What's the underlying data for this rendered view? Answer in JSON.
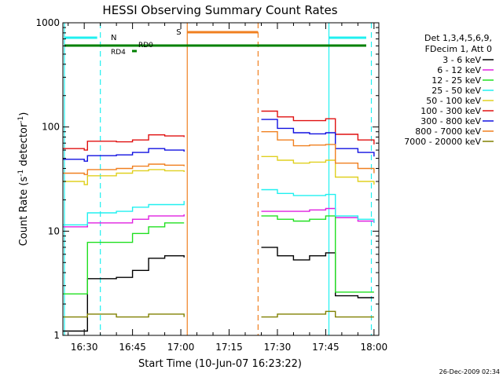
{
  "chart_data": {
    "type": "line",
    "title": "HESSI Observing Summary Count Rates",
    "xlabel": "Start Time (10-Jun-07 16:23:22)",
    "ylabel_main": "Count Rate (s",
    "ylabel_sup1": "-1",
    "ylabel_mid": " detector",
    "ylabel_sup2": "-1",
    "ylabel_end": ")",
    "yscale": "log",
    "ylim": [
      1,
      1000
    ],
    "xlim_minutes": [
      16.37,
      18.08
    ],
    "x_ticks": [
      "16:30",
      "16:45",
      "17:00",
      "17:15",
      "17:30",
      "17:45",
      "18:00"
    ],
    "y_ticks": [
      "1",
      "10",
      "100",
      "1000"
    ],
    "legend_header": [
      "Det 1,3,4,5,6,9,",
      "FDecim 1, Att 0"
    ],
    "timestamp": "26-Dec-2009 02:34",
    "flags": {
      "night": "N",
      "saa": "S",
      "rd0": "RD0",
      "rd4": "RD4"
    },
    "gaps": [
      [
        "17:02",
        "17:24"
      ]
    ],
    "series": [
      {
        "name": "3 - 6 keV",
        "color": "#000000",
        "x": [
          "16:23",
          "16:30",
          "16:31",
          "16:40",
          "16:45",
          "16:50",
          "16:55",
          "17:01",
          "17:25",
          "17:30",
          "17:35",
          "17:40",
          "17:45",
          "17:48",
          "17:55",
          "18:00"
        ],
        "y": [
          1.1,
          1.1,
          3.5,
          3.6,
          4.2,
          5.5,
          5.8,
          5.6,
          7.0,
          5.8,
          5.3,
          5.8,
          6.2,
          2.4,
          2.3,
          2.3
        ]
      },
      {
        "name": "6 - 12 keV",
        "color": "#e020e0",
        "x": [
          "16:23",
          "16:30",
          "16:31",
          "16:40",
          "16:45",
          "16:50",
          "16:55",
          "17:01",
          "17:25",
          "17:30",
          "17:35",
          "17:40",
          "17:45",
          "17:48",
          "17:55",
          "18:00"
        ],
        "y": [
          11,
          11,
          12,
          12,
          13,
          14,
          14,
          14.5,
          15.5,
          15.5,
          15.5,
          16,
          16.5,
          13.5,
          12.5,
          12
        ]
      },
      {
        "name": "12 - 25 keV",
        "color": "#20e020",
        "x": [
          "16:23",
          "16:30",
          "16:31",
          "16:40",
          "16:45",
          "16:50",
          "16:55",
          "17:01",
          "17:25",
          "17:30",
          "17:35",
          "17:40",
          "17:45",
          "17:48",
          "17:55",
          "18:00"
        ],
        "y": [
          2.5,
          2.5,
          7.8,
          7.8,
          9.5,
          11,
          12,
          12,
          14,
          13,
          12.5,
          13,
          14,
          2.6,
          2.6,
          2.6
        ]
      },
      {
        "name": "25 - 50 keV",
        "color": "#20f0f0",
        "x": [
          "16:23",
          "16:30",
          "16:31",
          "16:40",
          "16:45",
          "16:50",
          "16:55",
          "17:01",
          "17:25",
          "17:30",
          "17:35",
          "17:40",
          "17:45",
          "17:48",
          "17:55",
          "18:00"
        ],
        "y": [
          11.5,
          11.5,
          15,
          15.5,
          17,
          18,
          18,
          19.5,
          25,
          23,
          22,
          22,
          22.5,
          14,
          13,
          12
        ]
      },
      {
        "name": "50 - 100 keV",
        "color": "#e0d020",
        "x": [
          "16:23",
          "16:30",
          "16:31",
          "16:40",
          "16:45",
          "16:50",
          "16:55",
          "17:01",
          "17:25",
          "17:30",
          "17:35",
          "17:40",
          "17:45",
          "17:48",
          "17:55",
          "18:00"
        ],
        "y": [
          30,
          28,
          34,
          36,
          38,
          39,
          38,
          37,
          52,
          48,
          45,
          46,
          48,
          33,
          30,
          28
        ]
      },
      {
        "name": "100 - 300 keV",
        "color": "#e01010",
        "x": [
          "16:23",
          "16:30",
          "16:31",
          "16:40",
          "16:45",
          "16:50",
          "16:55",
          "17:01",
          "17:25",
          "17:30",
          "17:35",
          "17:40",
          "17:45",
          "17:48",
          "17:55",
          "18:00"
        ],
        "y": [
          62,
          60,
          73,
          72,
          75,
          84,
          82,
          80,
          142,
          125,
          115,
          115,
          120,
          85,
          75,
          68
        ]
      },
      {
        "name": "300 - 800 keV",
        "color": "#1010e0",
        "x": [
          "16:23",
          "16:30",
          "16:31",
          "16:40",
          "16:45",
          "16:50",
          "16:55",
          "17:01",
          "17:25",
          "17:30",
          "17:35",
          "17:40",
          "17:45",
          "17:48",
          "17:55",
          "18:00"
        ],
        "y": [
          49,
          47,
          53,
          54,
          57,
          62,
          60,
          58,
          118,
          97,
          88,
          86,
          88,
          62,
          57,
          52
        ]
      },
      {
        "name": "800 - 7000 keV",
        "color": "#f08020",
        "x": [
          "16:23",
          "16:30",
          "16:31",
          "16:40",
          "16:45",
          "16:50",
          "16:55",
          "17:01",
          "17:25",
          "17:30",
          "17:35",
          "17:40",
          "17:45",
          "17:48",
          "17:55",
          "18:00"
        ],
        "y": [
          36,
          35,
          39,
          40,
          42,
          44,
          43,
          42,
          90,
          75,
          66,
          67,
          68,
          45,
          40,
          36
        ]
      },
      {
        "name": "7000 - 20000 keV",
        "color": "#808000",
        "x": [
          "16:23",
          "16:30",
          "16:31",
          "16:40",
          "16:45",
          "16:50",
          "16:55",
          "17:01",
          "17:25",
          "17:30",
          "17:35",
          "17:40",
          "17:45",
          "17:48",
          "17:55",
          "18:00"
        ],
        "y": [
          1.5,
          1.5,
          1.6,
          1.5,
          1.5,
          1.6,
          1.6,
          1.5,
          1.5,
          1.6,
          1.6,
          1.6,
          1.7,
          1.5,
          1.5,
          1.5
        ]
      }
    ]
  }
}
